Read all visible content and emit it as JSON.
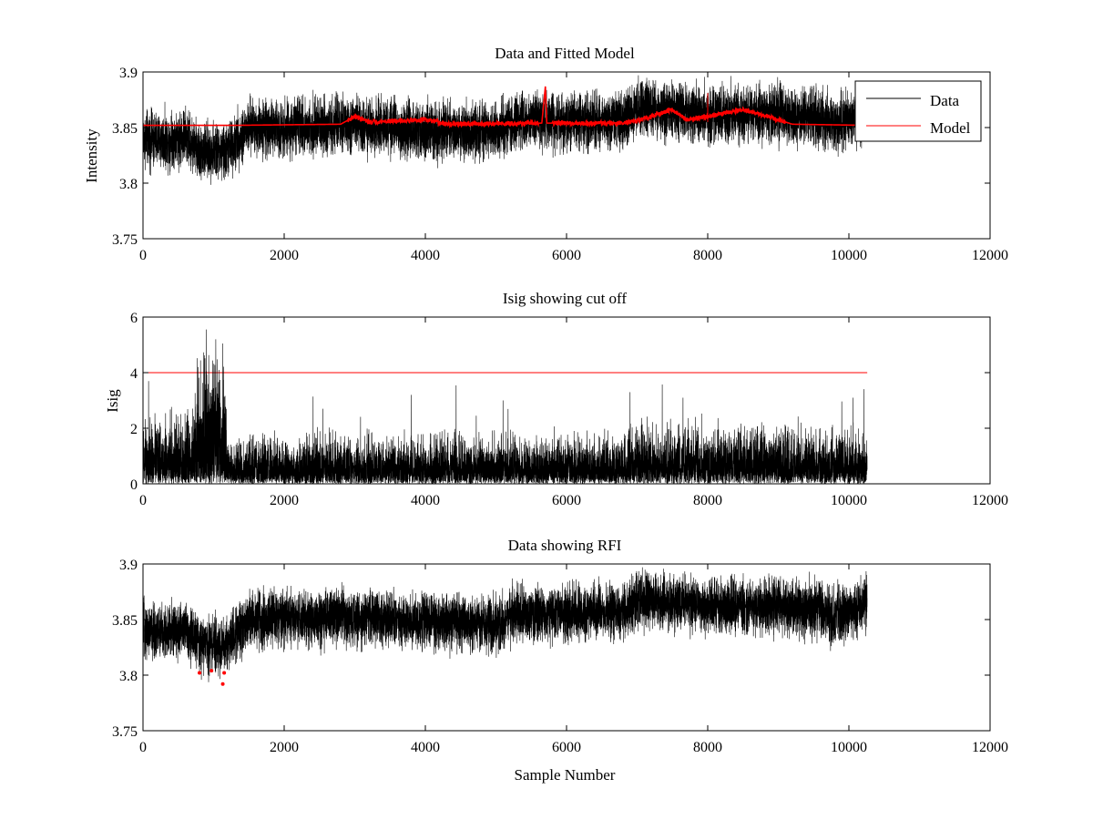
{
  "chart_data": [
    {
      "type": "line",
      "title": "Data and Fitted Model",
      "xlabel": "",
      "ylabel": "Intensity",
      "xlim": [
        0,
        12000
      ],
      "ylim": [
        3.75,
        3.9
      ],
      "xticks": [
        "0",
        "2000",
        "4000",
        "6000",
        "8000",
        "10000",
        "12000"
      ],
      "yticks": [
        "3.75",
        "3.8",
        "3.85",
        "3.9"
      ],
      "legend": {
        "position": "top-right",
        "entries": [
          "Data",
          "Model"
        ]
      },
      "series": [
        {
          "name": "Data",
          "color": "#000000",
          "kind": "noisy",
          "n_samples": 10260,
          "noise_amplitude": 0.012,
          "baseline": [
            [
              0,
              3.84
            ],
            [
              300,
              3.838
            ],
            [
              600,
              3.842
            ],
            [
              800,
              3.828
            ],
            [
              1000,
              3.828
            ],
            [
              1150,
              3.826
            ],
            [
              1500,
              3.85
            ],
            [
              2000,
              3.85
            ],
            [
              3000,
              3.852
            ],
            [
              4000,
              3.848
            ],
            [
              5000,
              3.846
            ],
            [
              5200,
              3.855
            ],
            [
              6000,
              3.855
            ],
            [
              6800,
              3.858
            ],
            [
              7000,
              3.868
            ],
            [
              8000,
              3.862
            ],
            [
              9000,
              3.862
            ],
            [
              9600,
              3.858
            ],
            [
              9800,
              3.852
            ],
            [
              10260,
              3.865
            ]
          ]
        },
        {
          "name": "Model",
          "color": "#ff0000",
          "kind": "smooth",
          "x_end": 10260,
          "baseline": [
            [
              0,
              3.852
            ],
            [
              1300,
              3.852
            ],
            [
              2800,
              3.853
            ],
            [
              3000,
              3.86
            ],
            [
              3200,
              3.855
            ],
            [
              4000,
              3.857
            ],
            [
              4300,
              3.853
            ],
            [
              5650,
              3.854
            ],
            [
              5700,
              3.887
            ],
            [
              5720,
              3.854
            ],
            [
              6800,
              3.854
            ],
            [
              7000,
              3.856
            ],
            [
              7500,
              3.866
            ],
            [
              7700,
              3.857
            ],
            [
              8000,
              3.86
            ],
            [
              8500,
              3.866
            ],
            [
              9000,
              3.857
            ],
            [
              9200,
              3.853
            ],
            [
              10260,
              3.852
            ]
          ]
        }
      ]
    },
    {
      "type": "line",
      "title": "Isig showing cut off",
      "xlabel": "",
      "ylabel": "Isig",
      "xlim": [
        0,
        12000
      ],
      "ylim": [
        0,
        6
      ],
      "xticks": [
        "0",
        "2000",
        "4000",
        "6000",
        "8000",
        "10000",
        "12000"
      ],
      "yticks": [
        "0",
        "2",
        "4",
        "6"
      ],
      "cutoff": {
        "value": 4,
        "color": "#ff0000",
        "x_end": 10260
      },
      "series": [
        {
          "name": "Isig",
          "color": "#000000",
          "kind": "abs-noise",
          "n_samples": 10260,
          "scale_profile": [
            [
              0,
              1.0
            ],
            [
              700,
              1.1
            ],
            [
              750,
              2.0
            ],
            [
              1150,
              2.0
            ],
            [
              1200,
              0.75
            ],
            [
              6800,
              0.75
            ],
            [
              7000,
              0.95
            ],
            [
              10260,
              0.85
            ]
          ],
          "peaks": [
            [
              1130,
              5.05
            ],
            [
              1080,
              4.1
            ],
            [
              780,
              4.2
            ],
            [
              860,
              3.8
            ],
            [
              6900,
              3.3
            ],
            [
              3800,
              3.2
            ],
            [
              7650,
              3.1
            ],
            [
              5100,
              3.0
            ],
            [
              10060,
              3.1
            ],
            [
              2550,
              2.7
            ]
          ]
        }
      ]
    },
    {
      "type": "line",
      "title": "Data showing RFI",
      "xlabel": "Sample Number",
      "ylabel": "",
      "xlim": [
        0,
        12000
      ],
      "ylim": [
        3.75,
        3.9
      ],
      "xticks": [
        "0",
        "2000",
        "4000",
        "6000",
        "8000",
        "10000",
        "12000"
      ],
      "yticks": [
        "3.75",
        "3.8",
        "3.85",
        "3.9"
      ],
      "series": [
        {
          "name": "Data",
          "color": "#000000",
          "kind": "noisy",
          "n_samples": 10260,
          "noise_amplitude": 0.012,
          "baseline": [
            [
              0,
              3.84
            ],
            [
              300,
              3.838
            ],
            [
              600,
              3.842
            ],
            [
              800,
              3.828
            ],
            [
              1000,
              3.828
            ],
            [
              1150,
              3.826
            ],
            [
              1500,
              3.85
            ],
            [
              2000,
              3.85
            ],
            [
              3000,
              3.852
            ],
            [
              4000,
              3.848
            ],
            [
              5000,
              3.846
            ],
            [
              5200,
              3.855
            ],
            [
              6000,
              3.855
            ],
            [
              6800,
              3.858
            ],
            [
              7000,
              3.868
            ],
            [
              8000,
              3.862
            ],
            [
              9000,
              3.862
            ],
            [
              9600,
              3.858
            ],
            [
              9800,
              3.852
            ],
            [
              10260,
              3.865
            ]
          ]
        },
        {
          "name": "RFI",
          "color": "#ff0000",
          "kind": "markers",
          "points": [
            [
              800,
              3.802
            ],
            [
              970,
              3.804
            ],
            [
              1130,
              3.792
            ],
            [
              1150,
              3.802
            ]
          ]
        }
      ]
    }
  ]
}
